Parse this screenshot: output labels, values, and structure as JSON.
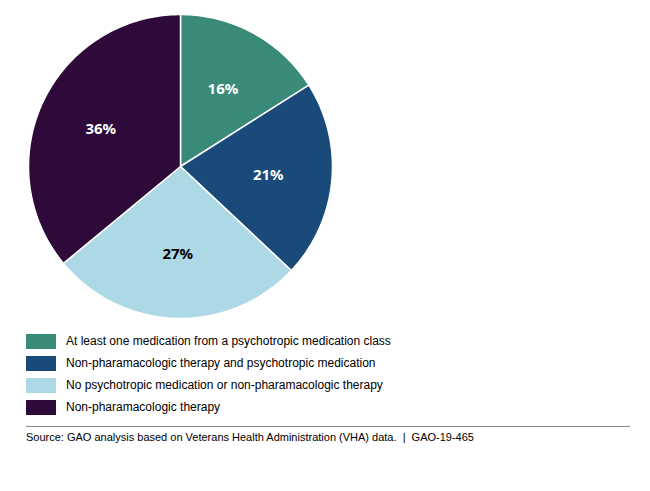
{
  "chart_data": {
    "type": "pie",
    "categories": [
      "At least one medication from a psychotropic medication class",
      "Non-pharamacologic therapy and psychotropic medication",
      "No psychotropic medication or non-pharamacologic therapy",
      "Non-pharamacologic therapy"
    ],
    "values": [
      16,
      21,
      27,
      36
    ],
    "value_labels": [
      "16%",
      "21%",
      "27%",
      "36%"
    ],
    "colors": [
      "#3a8a7a",
      "#1a4a7a",
      "#add8e6",
      "#2d0a3a"
    ],
    "data_labels": true,
    "caption": "Source: GAO analysis based on Veterans Health Administration (VHA) data.  |  GAO-19-465"
  }
}
